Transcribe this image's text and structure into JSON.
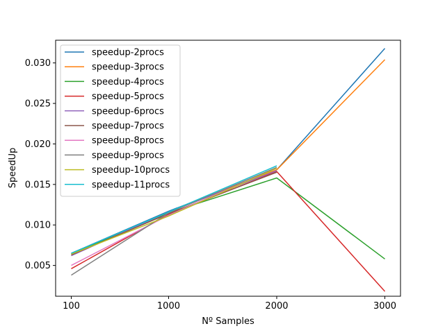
{
  "chart_data": {
    "type": "line",
    "title": "",
    "xlabel": "Nº Samples",
    "ylabel": "SpeedUp",
    "categories": [
      "100",
      "1000",
      "2000",
      "3000"
    ],
    "ylim": [
      0.0012,
      0.0328
    ],
    "yticks": [
      0.005,
      0.01,
      0.015,
      0.02,
      0.025,
      0.03
    ],
    "ytick_labels": [
      "0.005",
      "0.010",
      "0.015",
      "0.020",
      "0.025",
      "0.030"
    ],
    "grid": false,
    "legend_position": "top-left",
    "series": [
      {
        "name": "speedup-2procs",
        "color": "#1f77b4",
        "values": [
          0.0065,
          0.0117,
          0.0168,
          0.0318
        ]
      },
      {
        "name": "speedup-3procs",
        "color": "#ff7f0e",
        "values": [
          0.0064,
          0.0116,
          0.0168,
          0.0304
        ]
      },
      {
        "name": "speedup-4procs",
        "color": "#2ca02c",
        "values": [
          0.0064,
          0.0115,
          0.0158,
          0.0058
        ]
      },
      {
        "name": "speedup-5procs",
        "color": "#d62728",
        "values": [
          0.0046,
          0.0113,
          0.0166,
          0.0018
        ]
      },
      {
        "name": "speedup-6procs",
        "color": "#9467bd",
        "values": [
          0.0062,
          0.0116,
          0.0167,
          null
        ]
      },
      {
        "name": "speedup-7procs",
        "color": "#8c564b",
        "values": [
          0.0063,
          0.0114,
          0.0165,
          null
        ]
      },
      {
        "name": "speedup-8procs",
        "color": "#e377c2",
        "values": [
          0.005,
          0.0112,
          0.017,
          null
        ]
      },
      {
        "name": "speedup-9procs",
        "color": "#7f7f7f",
        "values": [
          0.0038,
          0.0115,
          0.0171,
          null
        ]
      },
      {
        "name": "speedup-10procs",
        "color": "#bcbd22",
        "values": [
          0.0064,
          0.0111,
          0.017,
          null
        ]
      },
      {
        "name": "speedup-11procs",
        "color": "#17becf",
        "values": [
          0.0065,
          0.0116,
          0.0173,
          null
        ]
      }
    ]
  }
}
